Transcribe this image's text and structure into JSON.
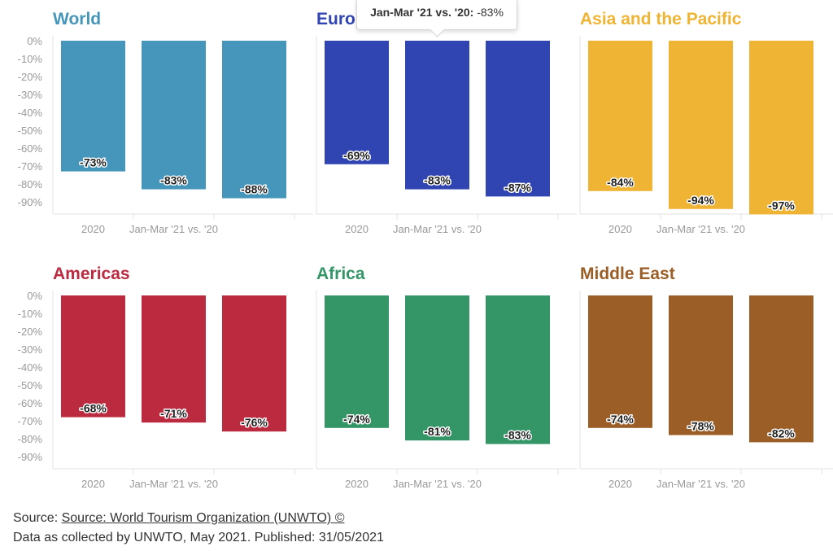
{
  "chart_data": [
    {
      "type": "bar",
      "title": "World",
      "color": "#4696bb",
      "categories": [
        "2020",
        "Jan-Mar '21 vs. '20",
        ""
      ],
      "values": [
        -73,
        -83,
        -88
      ],
      "labels": [
        "-73%",
        "-83%",
        "-88%"
      ],
      "ylim": [
        -100,
        0
      ],
      "yticks": [
        "0%",
        "-10%",
        "-20%",
        "-30%",
        "-40%",
        "-50%",
        "-60%",
        "-70%",
        "-80%",
        "-90%"
      ],
      "grid": false
    },
    {
      "type": "bar",
      "title": "Europe",
      "color": "#3044b2",
      "categories": [
        "2020",
        "Jan-Mar '21 vs. '20",
        ""
      ],
      "values": [
        -69,
        -83,
        -87
      ],
      "labels": [
        "-69%",
        "-83%",
        "-87%"
      ],
      "ylim": [
        -100,
        0
      ],
      "grid": false
    },
    {
      "type": "bar",
      "title": "Asia and the Pacific",
      "color": "#f0b434",
      "categories": [
        "2020",
        "Jan-Mar '21 vs. '20",
        ""
      ],
      "values": [
        -84,
        -94,
        -97
      ],
      "labels": [
        "-84%",
        "-94%",
        "-97%"
      ],
      "ylim": [
        -100,
        0
      ],
      "grid": false
    },
    {
      "type": "bar",
      "title": "Americas",
      "color": "#bc2a40",
      "categories": [
        "2020",
        "Jan-Mar '21 vs. '20",
        ""
      ],
      "values": [
        -68,
        -71,
        -76
      ],
      "labels": [
        "-68%",
        "-71%",
        "-76%"
      ],
      "ylim": [
        -100,
        0
      ],
      "yticks": [
        "0%",
        "-10%",
        "-20%",
        "-30%",
        "-40%",
        "-50%",
        "-60%",
        "-70%",
        "-80%",
        "-90%"
      ],
      "grid": false
    },
    {
      "type": "bar",
      "title": "Africa",
      "color": "#349567",
      "categories": [
        "2020",
        "Jan-Mar '21 vs. '20",
        ""
      ],
      "values": [
        -74,
        -81,
        -83
      ],
      "labels": [
        "-74%",
        "-81%",
        "-83%"
      ],
      "ylim": [
        -100,
        0
      ],
      "grid": false
    },
    {
      "type": "bar",
      "title": "Middle East",
      "color": "#9b5e26",
      "categories": [
        "2020",
        "Jan-Mar '21 vs. '20",
        ""
      ],
      "values": [
        -74,
        -78,
        -82
      ],
      "labels": [
        "-74%",
        "-78%",
        "-82%"
      ],
      "ylim": [
        -100,
        0
      ],
      "grid": false
    }
  ],
  "tooltip": {
    "key": "Jan-Mar '21 vs. '20:",
    "value": "-83%"
  },
  "footer": {
    "source_prefix": "Source:",
    "source_link": "Source: World Tourism Organization (UNWTO) ©",
    "note": "Data as collected by UNWTO, May 2021. Published: 31/05/2021"
  }
}
